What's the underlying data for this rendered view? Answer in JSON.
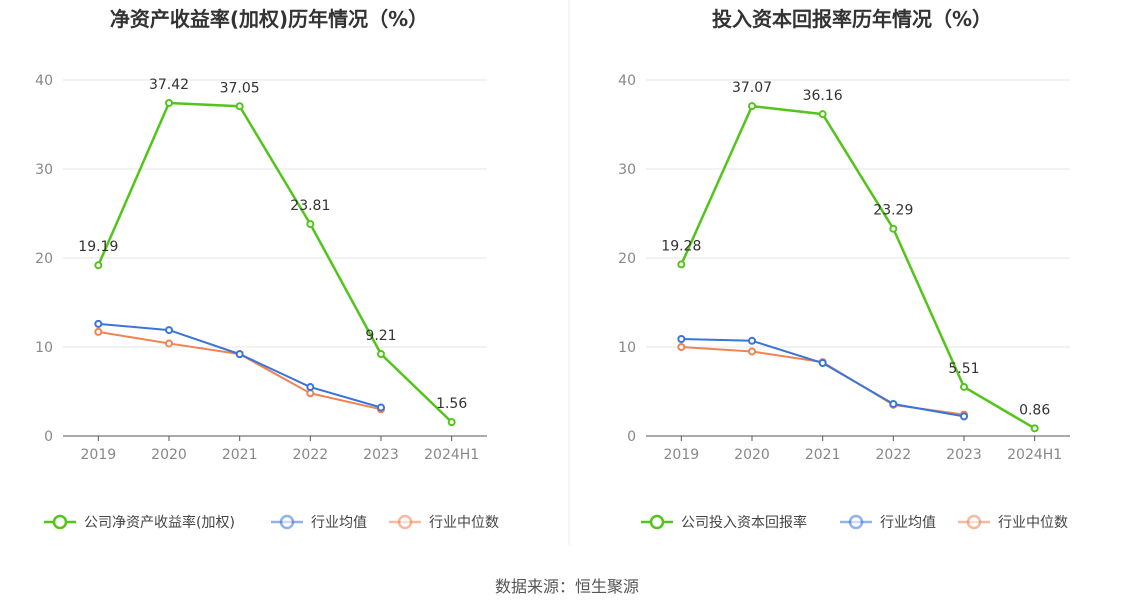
{
  "source_text": "数据来源：恒生聚源",
  "colors": {
    "company": "#52c41a",
    "industry_avg": "#3b74d9",
    "industry_median": "#ef8354"
  },
  "chart_data": [
    {
      "type": "line",
      "title": "净资产收益率(加权)历年情况（%）",
      "categories": [
        "2019",
        "2020",
        "2021",
        "2022",
        "2023",
        "2024H1"
      ],
      "ylim": [
        0,
        40
      ],
      "yticks": [
        0,
        10,
        20,
        30,
        40
      ],
      "grid": true,
      "legend_position": "bottom",
      "series": [
        {
          "name": "公司净资产收益率(加权)",
          "values": [
            19.19,
            37.42,
            37.05,
            23.81,
            9.21,
            1.56
          ],
          "labels": [
            "19.19",
            "37.42",
            "37.05",
            "23.81",
            "9.21",
            "1.56"
          ]
        },
        {
          "name": "行业均值",
          "values": [
            12.6,
            11.9,
            9.2,
            5.5,
            3.2,
            null
          ]
        },
        {
          "name": "行业中位数",
          "values": [
            11.7,
            10.4,
            9.2,
            4.8,
            3.0,
            null
          ]
        }
      ]
    },
    {
      "type": "line",
      "title": "投入资本回报率历年情况（%）",
      "categories": [
        "2019",
        "2020",
        "2021",
        "2022",
        "2023",
        "2024H1"
      ],
      "ylim": [
        0,
        40
      ],
      "yticks": [
        0,
        10,
        20,
        30,
        40
      ],
      "grid": true,
      "legend_position": "bottom",
      "series": [
        {
          "name": "公司投入资本回报率",
          "values": [
            19.28,
            37.07,
            36.16,
            23.29,
            5.51,
            0.86
          ],
          "labels": [
            "19.28",
            "37.07",
            "36.16",
            "23.29",
            "5.51",
            "0.86"
          ]
        },
        {
          "name": "行业均值",
          "values": [
            10.9,
            10.7,
            8.2,
            3.6,
            2.2,
            null
          ]
        },
        {
          "name": "行业中位数",
          "values": [
            10.0,
            9.5,
            8.3,
            3.5,
            2.4,
            null
          ]
        }
      ]
    }
  ]
}
